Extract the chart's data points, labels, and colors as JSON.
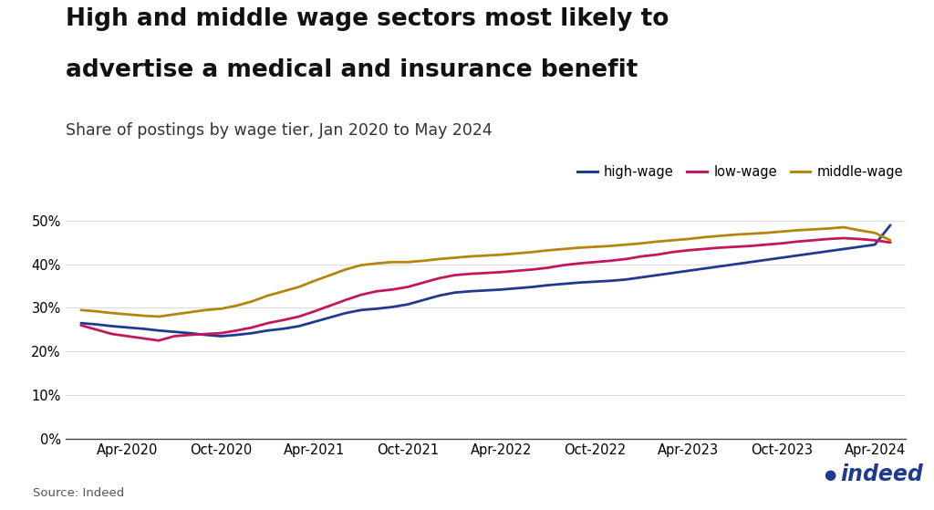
{
  "title_line1": "High and middle wage sectors most likely to",
  "title_line2": "advertise a medical and insurance benefit",
  "subtitle": "Share of postings by wage tier, Jan 2020 to May 2024",
  "source": "Source: Indeed",
  "title_fontsize": 19,
  "subtitle_fontsize": 12.5,
  "background_color": "#ffffff",
  "line_colors": {
    "high-wage": "#1f3a8f",
    "low-wage": "#c2185b",
    "middle-wage": "#b5860d"
  },
  "line_width": 2.0,
  "ylim": [
    0,
    0.55
  ],
  "yticks": [
    0,
    0.1,
    0.2,
    0.3,
    0.4,
    0.5
  ],
  "high_wage": [
    0.265,
    0.262,
    0.258,
    0.255,
    0.252,
    0.248,
    0.245,
    0.242,
    0.238,
    0.235,
    0.238,
    0.242,
    0.248,
    0.252,
    0.258,
    0.268,
    0.278,
    0.288,
    0.295,
    0.298,
    0.302,
    0.308,
    0.318,
    0.328,
    0.335,
    0.338,
    0.34,
    0.342,
    0.345,
    0.348,
    0.352,
    0.355,
    0.358,
    0.36,
    0.362,
    0.365,
    0.37,
    0.375,
    0.38,
    0.385,
    0.39,
    0.395,
    0.4,
    0.405,
    0.41,
    0.415,
    0.42,
    0.425,
    0.43,
    0.435,
    0.44,
    0.445,
    0.49
  ],
  "low_wage": [
    0.26,
    0.25,
    0.24,
    0.235,
    0.23,
    0.225,
    0.235,
    0.238,
    0.24,
    0.242,
    0.248,
    0.255,
    0.265,
    0.272,
    0.28,
    0.292,
    0.305,
    0.318,
    0.33,
    0.338,
    0.342,
    0.348,
    0.358,
    0.368,
    0.375,
    0.378,
    0.38,
    0.382,
    0.385,
    0.388,
    0.392,
    0.398,
    0.402,
    0.405,
    0.408,
    0.412,
    0.418,
    0.422,
    0.428,
    0.432,
    0.435,
    0.438,
    0.44,
    0.442,
    0.445,
    0.448,
    0.452,
    0.455,
    0.458,
    0.46,
    0.458,
    0.455,
    0.45
  ],
  "middle_wage": [
    0.295,
    0.292,
    0.288,
    0.285,
    0.282,
    0.28,
    0.285,
    0.29,
    0.295,
    0.298,
    0.305,
    0.315,
    0.328,
    0.338,
    0.348,
    0.362,
    0.375,
    0.388,
    0.398,
    0.402,
    0.405,
    0.405,
    0.408,
    0.412,
    0.415,
    0.418,
    0.42,
    0.422,
    0.425,
    0.428,
    0.432,
    0.435,
    0.438,
    0.44,
    0.442,
    0.445,
    0.448,
    0.452,
    0.455,
    0.458,
    0.462,
    0.465,
    0.468,
    0.47,
    0.472,
    0.475,
    0.478,
    0.48,
    0.482,
    0.485,
    0.478,
    0.472,
    0.455
  ],
  "x_tick_labels": [
    "Apr-2020",
    "Oct-2020",
    "Apr-2021",
    "Oct-2021",
    "Apr-2022",
    "Oct-2022",
    "Apr-2023",
    "Oct-2023",
    "Apr-2024"
  ],
  "x_tick_positions": [
    3,
    9,
    15,
    21,
    27,
    33,
    39,
    45,
    51
  ]
}
